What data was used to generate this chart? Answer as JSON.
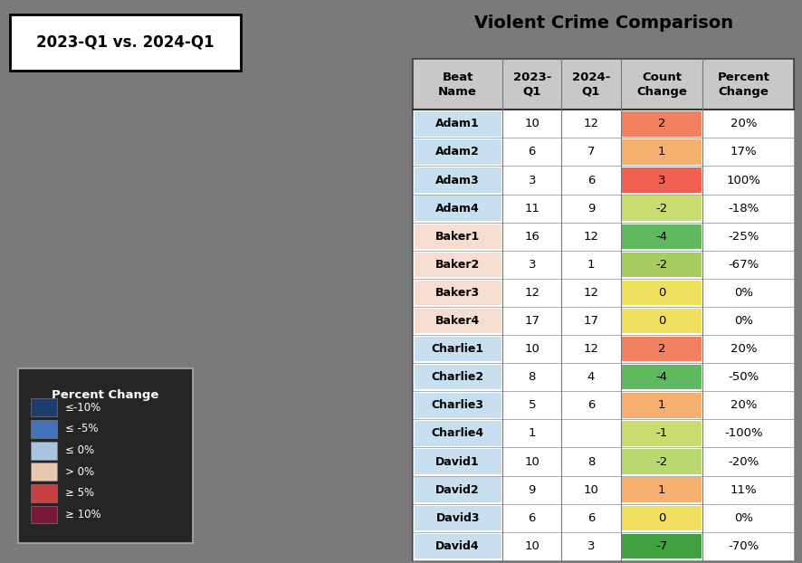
{
  "title": "Violent Crime Comparison",
  "map_label": "2023-Q1 vs. 2024-Q1",
  "headers": [
    "Beat\nName",
    "2023-\nQ1",
    "2024-\nQ1",
    "Count\nChange",
    "Percent\nChange"
  ],
  "rows": [
    [
      "Adam1",
      "10",
      "12",
      "2",
      "20%"
    ],
    [
      "Adam2",
      "6",
      "7",
      "1",
      "17%"
    ],
    [
      "Adam3",
      "3",
      "6",
      "3",
      "100%"
    ],
    [
      "Adam4",
      "11",
      "9",
      "-2",
      "-18%"
    ],
    [
      "Baker1",
      "16",
      "12",
      "-4",
      "-25%"
    ],
    [
      "Baker2",
      "3",
      "1",
      "-2",
      "-67%"
    ],
    [
      "Baker3",
      "12",
      "12",
      "0",
      "0%"
    ],
    [
      "Baker4",
      "17",
      "17",
      "0",
      "0%"
    ],
    [
      "Charlie1",
      "10",
      "12",
      "2",
      "20%"
    ],
    [
      "Charlie2",
      "8",
      "4",
      "-4",
      "-50%"
    ],
    [
      "Charlie3",
      "5",
      "6",
      "1",
      "20%"
    ],
    [
      "Charlie4",
      "1",
      "",
      "-1",
      "-100%"
    ],
    [
      "David1",
      "10",
      "8",
      "-2",
      "-20%"
    ],
    [
      "David2",
      "9",
      "10",
      "1",
      "11%"
    ],
    [
      "David3",
      "6",
      "6",
      "0",
      "0%"
    ],
    [
      "David4",
      "10",
      "3",
      "-7",
      "-70%"
    ]
  ],
  "beat_name_bg": {
    "Adam1": "#c8dff0",
    "Adam2": "#c8dff0",
    "Adam3": "#c8dff0",
    "Adam4": "#c8dff0",
    "Baker1": "#f5ddd0",
    "Baker2": "#f5ddd0",
    "Baker3": "#f5ddd0",
    "Baker4": "#f5ddd0",
    "Charlie1": "#c8dff0",
    "Charlie2": "#c8dff0",
    "Charlie3": "#c8dff0",
    "Charlie4": "#c8dff0",
    "David1": "#c8dff0",
    "David2": "#c8dff0",
    "David3": "#c8dff0",
    "David4": "#c8dff0"
  },
  "count_change_colors": {
    "Adam1": "#f08060",
    "Adam2": "#f5b070",
    "Adam3": "#f06050",
    "Adam4": "#c8dc70",
    "Baker1": "#60b860",
    "Baker2": "#a8cc60",
    "Baker3": "#f0e060",
    "Baker4": "#f0e060",
    "Charlie1": "#f08060",
    "Charlie2": "#60b860",
    "Charlie3": "#f5b070",
    "Charlie4": "#c8dc70",
    "David1": "#b8d870",
    "David2": "#f5b070",
    "David3": "#f0e060",
    "David4": "#40a040"
  },
  "legend_items": [
    [
      "≤-10%",
      "#1e3f6e"
    ],
    [
      "≤ -5%",
      "#4472b8"
    ],
    [
      "≤ 0%",
      "#a8c4e0"
    ],
    [
      "> 0%",
      "#e8c8b0"
    ],
    [
      "≥ 5%",
      "#c84040"
    ],
    [
      "≥ 10%",
      "#7a1a3a"
    ]
  ],
  "map_bg": "#7a7a7a",
  "table_outer_bg": "#e8e8e8",
  "header_bg": "#c8c8c8",
  "row_bg_white": "#ffffff"
}
